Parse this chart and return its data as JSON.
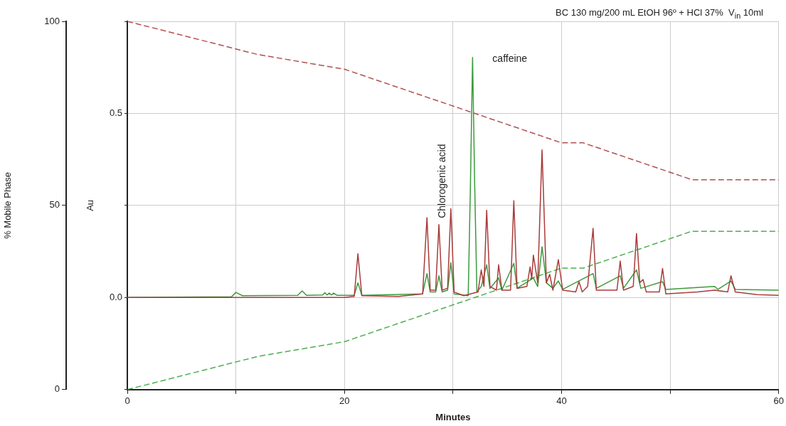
{
  "chart_data": {
    "type": "line",
    "title": "BC 130 mg/200 mL EtOH 96º + HCl 37%  V$_{in}$ 10ml",
    "xlabel": "Minutes",
    "ylabel": "Au",
    "y2label": "% Mobile Phase",
    "xlim": [
      0,
      60
    ],
    "xticks": [
      0,
      {
        "value": 10,
        "label": null
      },
      20,
      {
        "value": 30,
        "label": null
      },
      40,
      {
        "value": 50,
        "label": null
      },
      60
    ],
    "ylim": [
      -0.25,
      0.75
    ],
    "yticks": [
      {
        "value": -0.25,
        "label": null
      },
      {
        "value": 0,
        "label": "0.0"
      },
      {
        "value": 0.25,
        "label": null
      },
      {
        "value": 0.5,
        "label": "0.5"
      },
      {
        "value": 0.75,
        "label": null
      }
    ],
    "y2lim": [
      0,
      100
    ],
    "y2ticks": [
      0,
      50,
      100
    ],
    "grid": true,
    "legend": false,
    "marker": "none",
    "series": [
      {
        "color": "#a83c3a",
        "line_style": "solid",
        "x": [
          0,
          3.2,
          10,
          20,
          20.9,
          21.24,
          21.6,
          25,
          27.2,
          27.6,
          27.9,
          28.4,
          28.7,
          29.0,
          29.5,
          29.8,
          30.1,
          31.0,
          32.3,
          32.6,
          32.85,
          33.1,
          33.4,
          34.0,
          34.2,
          34.5,
          35.3,
          35.6,
          35.9,
          36.8,
          37.1,
          37.25,
          37.4,
          37.8,
          38.2,
          38.6,
          38.9,
          39.2,
          39.7,
          40.1,
          41.3,
          41.6,
          41.9,
          42.4,
          42.9,
          43.2,
          45.1,
          45.4,
          45.7,
          46.6,
          46.9,
          47.2,
          47.5,
          47.8,
          49.0,
          49.3,
          49.6,
          52.5,
          54.1,
          55.3,
          55.6,
          56.0,
          58,
          60
        ],
        "values": [
          0,
          0,
          0,
          0,
          0.003,
          0.119,
          0.005,
          0.003,
          0.01,
          0.217,
          0.02,
          0.02,
          0.198,
          0.02,
          0.025,
          0.241,
          0.015,
          0.005,
          0.015,
          0.075,
          0.03,
          0.237,
          0.03,
          0.02,
          0.089,
          0.02,
          0.02,
          0.263,
          0.025,
          0.03,
          0.083,
          0.05,
          0.115,
          0.04,
          0.401,
          0.04,
          0.063,
          0.02,
          0.103,
          0.02,
          0.015,
          0.043,
          0.015,
          0.03,
          0.188,
          0.02,
          0.02,
          0.099,
          0.02,
          0.03,
          0.174,
          0.04,
          0.049,
          0.015,
          0.015,
          0.079,
          0.01,
          0.015,
          0.02,
          0.015,
          0.059,
          0.015,
          0.008,
          0.006
        ]
      },
      {
        "color": "#3c9a3c",
        "line_style": "solid",
        "x": [
          0,
          9.6,
          10,
          10.6,
          15.7,
          16.1,
          16.5,
          18.0,
          18.2,
          18.4,
          18.6,
          18.8,
          19.0,
          19.3,
          20.9,
          21.24,
          21.6,
          27.2,
          27.6,
          27.9,
          28.4,
          28.7,
          29.0,
          29.5,
          29.8,
          30.1,
          31.4,
          31.6,
          31.8,
          32.0,
          32.2,
          32.6,
          33.1,
          33.4,
          34.2,
          34.5,
          35.6,
          35.9,
          37.4,
          37.8,
          38.2,
          38.6,
          39.2,
          39.7,
          40.1,
          42.9,
          43.2,
          45.4,
          45.7,
          46.9,
          47.3,
          49.3,
          49.6,
          54.1,
          54.4,
          55.6,
          56.0,
          60
        ],
        "values": [
          0,
          0.002,
          0.014,
          0.005,
          0.006,
          0.018,
          0.006,
          0.007,
          0.013,
          0.007,
          0.012,
          0.007,
          0.012,
          0.006,
          0.006,
          0.04,
          0.006,
          0.01,
          0.065,
          0.015,
          0.015,
          0.059,
          0.015,
          0.02,
          0.095,
          0.01,
          0.005,
          0.3,
          0.652,
          0.3,
          0.015,
          0.03,
          0.089,
          0.025,
          0.053,
          0.02,
          0.093,
          0.025,
          0.053,
          0.03,
          0.138,
          0.04,
          0.025,
          0.045,
          0.022,
          0.065,
          0.025,
          0.059,
          0.025,
          0.075,
          0.025,
          0.043,
          0.022,
          0.03,
          0.022,
          0.045,
          0.022,
          0.02
        ]
      },
      {
        "color": "#b05050",
        "axis": "y2",
        "line_style": "dashed",
        "x": [
          0,
          12,
          20,
          40,
          42,
          52,
          60
        ],
        "values": [
          100,
          91,
          87,
          67,
          67,
          57,
          57
        ]
      },
      {
        "color": "#4caf50",
        "axis": "y2",
        "line_style": "dashed",
        "x": [
          0,
          12,
          20,
          40,
          42,
          52,
          60
        ],
        "values": [
          0,
          9,
          13,
          33,
          33,
          43,
          43
        ]
      }
    ],
    "annotations": [
      {
        "text": "caffeine",
        "x": 31.8,
        "y": 0.652
      },
      {
        "text": "Chlorogenic acid",
        "x": 28.7,
        "y": 0.2
      }
    ]
  }
}
